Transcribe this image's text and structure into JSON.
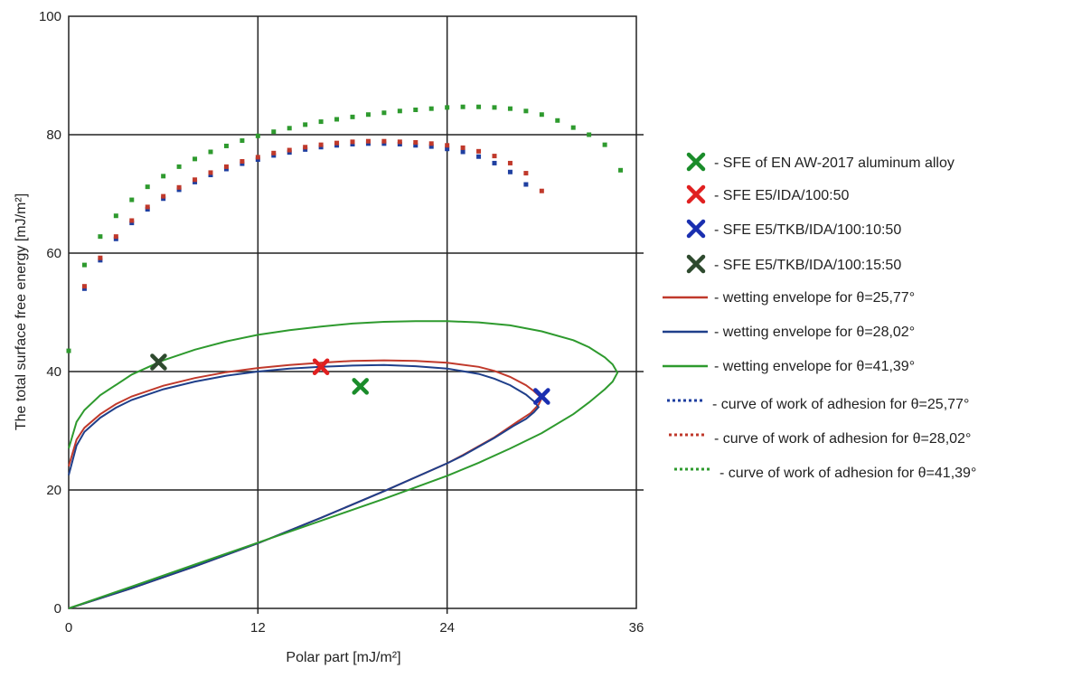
{
  "chart_data": {
    "type": "scatter",
    "title": "",
    "xlabel": "Polar part [mJ/m²]",
    "ylabel": "The total surface free energy [mJ/m²]",
    "xlim": [
      0,
      36
    ],
    "ylim": [
      0,
      100
    ],
    "xticks": [
      "0",
      "12",
      "24",
      "36"
    ],
    "yticks": [
      "0",
      "20",
      "40",
      "60",
      "80",
      "100"
    ],
    "grid": true,
    "legend_position": "right",
    "points": [
      {
        "name": "- SFE of EN AW-2017 aluminum alloy",
        "x": 18.5,
        "y": 37.5,
        "color": "#1a8c2a"
      },
      {
        "name": "- SFE E5/IDA/100:50",
        "x": 16.0,
        "y": 40.8,
        "color": "#e02020"
      },
      {
        "name": "- SFE E5/TKB/IDA/100:10:50",
        "x": 30.0,
        "y": 35.8,
        "color": "#1a2fb0"
      },
      {
        "name": "- SFE E5/TKB/IDA/100:15:50",
        "x": 5.7,
        "y": 41.6,
        "color": "#2e4a2e"
      }
    ],
    "envelopes": [
      {
        "name": "- wetting envelope for θ=25,77°",
        "color": "#c0392b",
        "style": "solid",
        "x": [
          0,
          0.5,
          1,
          2,
          3,
          4,
          6,
          8,
          10,
          12,
          14,
          16,
          18,
          20,
          22,
          24,
          26,
          27,
          28,
          29,
          29.5,
          30,
          29.8,
          29.3,
          28.5,
          27,
          25,
          24,
          20,
          16,
          12,
          8,
          4,
          0
        ],
        "y": [
          24,
          28.5,
          30.5,
          32.8,
          34.5,
          35.8,
          37.6,
          38.9,
          39.9,
          40.6,
          41.1,
          41.5,
          41.8,
          41.9,
          41.8,
          41.5,
          40.8,
          40.1,
          39.1,
          37.7,
          36.7,
          35.5,
          34.4,
          33.0,
          31.6,
          28.9,
          25.9,
          24.5,
          19.8,
          15.3,
          11.0,
          7.1,
          3.4,
          0
        ]
      },
      {
        "name": "- wetting envelope for θ=28,02°",
        "color": "#1f3f8a",
        "style": "solid",
        "x": [
          0,
          0.5,
          1,
          2,
          3,
          4,
          6,
          8,
          10,
          12,
          14,
          16,
          18,
          20,
          22,
          24,
          26,
          27,
          28,
          29,
          29.5,
          29.8,
          29.5,
          29.0,
          28.2,
          27,
          25,
          24,
          20,
          16,
          12,
          8,
          4,
          0
        ],
        "y": [
          22.5,
          27.5,
          29.8,
          32.2,
          33.9,
          35.2,
          37.0,
          38.3,
          39.3,
          40.0,
          40.5,
          40.8,
          41.0,
          41.1,
          40.9,
          40.5,
          39.6,
          38.8,
          37.7,
          36.1,
          35.0,
          34.0,
          33.1,
          32.0,
          30.8,
          28.8,
          25.8,
          24.5,
          19.8,
          15.3,
          11.0,
          7.1,
          3.4,
          0
        ]
      },
      {
        "name": "- wetting envelope for θ=41,39°",
        "color": "#2e9a2e",
        "style": "solid",
        "x": [
          0,
          0.5,
          1,
          2,
          4,
          6,
          8,
          10,
          12,
          14,
          16,
          18,
          20,
          22,
          24,
          26,
          28,
          30,
          32,
          33,
          34,
          34.5,
          34.8,
          34.5,
          34,
          33,
          32,
          30,
          28,
          26,
          24,
          20,
          16,
          12,
          8,
          4,
          0
        ],
        "y": [
          27,
          31.5,
          33.5,
          36.0,
          39.5,
          41.9,
          43.7,
          45.1,
          46.2,
          47.0,
          47.6,
          48.1,
          48.4,
          48.5,
          48.5,
          48.3,
          47.8,
          46.8,
          45.3,
          44.1,
          42.4,
          41.2,
          39.8,
          38.3,
          37.0,
          34.8,
          32.8,
          29.6,
          27.0,
          24.6,
          22.4,
          18.5,
          14.8,
          11.1,
          7.4,
          3.7,
          0
        ]
      }
    ],
    "adhesion_curves": [
      {
        "name": "- curve of work of adhesion for θ=25,77°",
        "color": "#1f3fa0",
        "style": "dotted",
        "x": [
          1,
          2,
          3,
          4,
          5,
          6,
          7,
          8,
          9,
          10,
          11,
          12,
          13,
          14,
          15,
          16,
          17,
          18,
          19,
          20,
          21,
          22,
          23,
          24,
          25,
          26,
          27,
          28,
          29
        ],
        "y": [
          54.0,
          58.8,
          62.4,
          65.1,
          67.4,
          69.2,
          70.7,
          72.0,
          73.2,
          74.2,
          75.1,
          75.8,
          76.5,
          77.0,
          77.5,
          77.9,
          78.2,
          78.4,
          78.5,
          78.5,
          78.4,
          78.2,
          78.0,
          77.6,
          77.1,
          76.3,
          75.2,
          73.7,
          71.6
        ]
      },
      {
        "name": "- curve of work of adhesion for θ=28,02°",
        "color": "#c0392b",
        "style": "dotted",
        "x": [
          1,
          2,
          3,
          4,
          5,
          6,
          7,
          8,
          9,
          10,
          11,
          12,
          13,
          14,
          15,
          16,
          17,
          18,
          19,
          20,
          21,
          22,
          23,
          24,
          25,
          26,
          27,
          28,
          29,
          30
        ],
        "y": [
          54.4,
          59.2,
          62.8,
          65.5,
          67.8,
          69.6,
          71.1,
          72.4,
          73.6,
          74.6,
          75.5,
          76.2,
          76.9,
          77.4,
          77.9,
          78.3,
          78.6,
          78.8,
          78.9,
          78.9,
          78.8,
          78.7,
          78.5,
          78.2,
          77.8,
          77.2,
          76.4,
          75.2,
          73.5,
          70.5
        ]
      },
      {
        "name": "- curve of work of adhesion for θ=41,39°",
        "color": "#2e9a2e",
        "style": "dotted",
        "x": [
          0,
          1,
          2,
          3,
          4,
          5,
          6,
          7,
          8,
          9,
          10,
          11,
          12,
          13,
          14,
          15,
          16,
          17,
          18,
          19,
          20,
          21,
          22,
          23,
          24,
          25,
          26,
          27,
          28,
          29,
          30,
          31,
          32,
          33,
          34,
          35
        ],
        "y": [
          43.5,
          58.0,
          62.8,
          66.3,
          69.0,
          71.2,
          73.0,
          74.6,
          75.9,
          77.1,
          78.1,
          79.0,
          79.8,
          80.5,
          81.1,
          81.7,
          82.2,
          82.6,
          83.0,
          83.4,
          83.7,
          84.0,
          84.2,
          84.4,
          84.6,
          84.7,
          84.7,
          84.6,
          84.4,
          84.0,
          83.4,
          82.4,
          81.2,
          80.0,
          78.3,
          74.0
        ]
      }
    ]
  }
}
